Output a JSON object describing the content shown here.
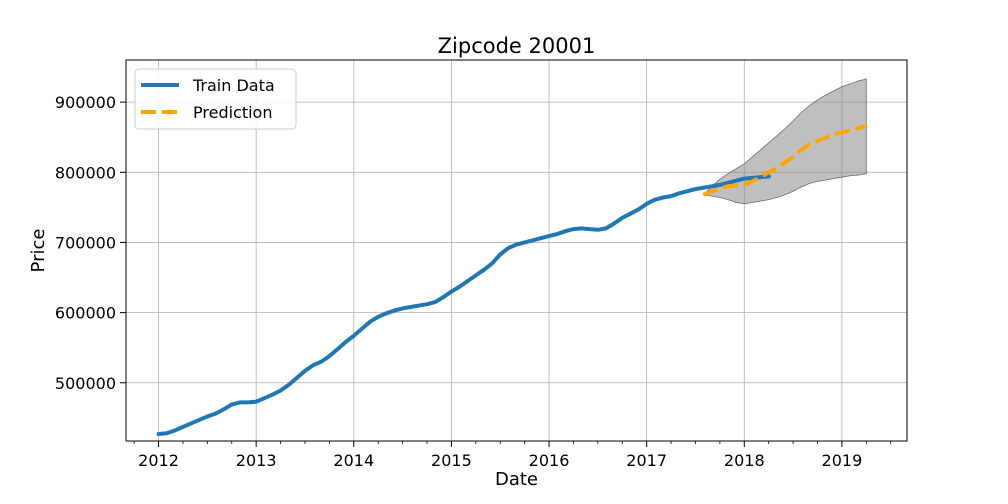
{
  "chart_data": {
    "type": "line",
    "title": "Zipcode 20001",
    "xlabel": "Date",
    "ylabel": "Price",
    "xlim": [
      "2011-09",
      "2019-09"
    ],
    "ylim": [
      417000,
      960000
    ],
    "x_ticks": [
      "2012",
      "2013",
      "2014",
      "2015",
      "2016",
      "2017",
      "2018",
      "2019"
    ],
    "y_ticks": [
      500000,
      600000,
      700000,
      800000,
      900000
    ],
    "grid": true,
    "legend_position": "top-left",
    "series": [
      {
        "name": "Train Data",
        "color": "#1f77b4",
        "style": "solid",
        "dates": [
          "2012-01",
          "2012-02",
          "2012-03",
          "2012-04",
          "2012-05",
          "2012-06",
          "2012-07",
          "2012-08",
          "2012-09",
          "2012-10",
          "2012-11",
          "2012-12",
          "2013-01",
          "2013-02",
          "2013-03",
          "2013-04",
          "2013-05",
          "2013-06",
          "2013-07",
          "2013-08",
          "2013-09",
          "2013-10",
          "2013-11",
          "2013-12",
          "2014-01",
          "2014-02",
          "2014-03",
          "2014-04",
          "2014-05",
          "2014-06",
          "2014-07",
          "2014-08",
          "2014-09",
          "2014-10",
          "2014-11",
          "2014-12",
          "2015-01",
          "2015-02",
          "2015-03",
          "2015-04",
          "2015-05",
          "2015-06",
          "2015-07",
          "2015-08",
          "2015-09",
          "2015-10",
          "2015-11",
          "2015-12",
          "2016-01",
          "2016-02",
          "2016-03",
          "2016-04",
          "2016-05",
          "2016-06",
          "2016-07",
          "2016-08",
          "2016-09",
          "2016-10",
          "2016-11",
          "2016-12",
          "2017-01",
          "2017-02",
          "2017-03",
          "2017-04",
          "2017-05",
          "2017-06",
          "2017-07",
          "2017-08",
          "2017-09",
          "2017-10",
          "2017-11",
          "2017-12",
          "2018-01",
          "2018-02",
          "2018-03",
          "2018-04"
        ],
        "values": [
          427000,
          428000,
          432000,
          437000,
          442000,
          447000,
          452000,
          456000,
          462000,
          469000,
          472000,
          472000,
          473000,
          478000,
          483000,
          489000,
          497000,
          507000,
          517000,
          525000,
          530000,
          538000,
          548000,
          558000,
          567000,
          577000,
          587000,
          594000,
          599000,
          603000,
          606000,
          608000,
          610000,
          612000,
          615000,
          622000,
          630000,
          637000,
          645000,
          653000,
          661000,
          670000,
          683000,
          692000,
          697000,
          700000,
          703000,
          706000,
          709000,
          712000,
          716000,
          719000,
          720000,
          719000,
          718000,
          720000,
          727000,
          735000,
          741000,
          747000,
          755000,
          761000,
          764000,
          766000,
          770000,
          773000,
          776000,
          778000,
          780000,
          782000,
          785000,
          788000,
          791000,
          792000,
          793000,
          794000
        ]
      },
      {
        "name": "Prediction",
        "color": "#ffa500",
        "style": "dashed",
        "dates": [
          "2017-08",
          "2017-09",
          "2017-10",
          "2017-11",
          "2017-12",
          "2018-01",
          "2018-02",
          "2018-03",
          "2018-04",
          "2018-05",
          "2018-06",
          "2018-07",
          "2018-08",
          "2018-09",
          "2018-10",
          "2018-11",
          "2018-12",
          "2019-01",
          "2019-02",
          "2019-03",
          "2019-04"
        ],
        "values": [
          768000,
          773000,
          777000,
          780000,
          781000,
          782000,
          787000,
          793000,
          800000,
          806000,
          814000,
          822000,
          832000,
          840000,
          845000,
          849000,
          853000,
          857000,
          860000,
          863000,
          866000
        ],
        "ci_lower": [
          768000,
          766000,
          764000,
          761000,
          757000,
          755000,
          757000,
          759000,
          761000,
          764000,
          768000,
          773000,
          779000,
          784000,
          787000,
          789000,
          791000,
          793000,
          795000,
          796000,
          798000
        ],
        "ci_upper": [
          768000,
          780000,
          790000,
          798000,
          805000,
          812000,
          822000,
          832000,
          842000,
          852000,
          862000,
          873000,
          885000,
          895000,
          903000,
          910000,
          916000,
          922000,
          926000,
          930000,
          933000
        ]
      }
    ]
  }
}
